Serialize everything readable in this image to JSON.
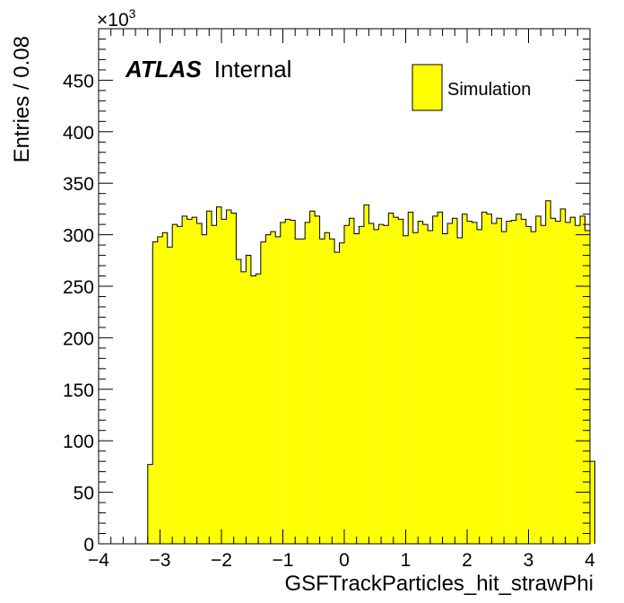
{
  "chart_data": {
    "type": "bar",
    "xlabel": "GSFTrackParticles_hit_strawPhi",
    "ylabel": "Entries / 0.08",
    "y_multiplier_label": "×10",
    "y_multiplier_exponent": "3",
    "xlim": [
      -4,
      4
    ],
    "ylim": [
      0,
      500
    ],
    "x_ticks": [
      -4,
      -3,
      -2,
      -1,
      0,
      1,
      2,
      3,
      4
    ],
    "x_tick_labels": [
      "−4",
      "−3",
      "−2",
      "−1",
      "0",
      "1",
      "2",
      "3",
      "4"
    ],
    "y_ticks": [
      0,
      50,
      100,
      150,
      200,
      250,
      300,
      350,
      400,
      450
    ],
    "y_tick_labels": [
      "0",
      "50",
      "100",
      "150",
      "200",
      "250",
      "300",
      "350",
      "400",
      "450"
    ],
    "bin_width": 0.08,
    "first_bin_low_edge": -3.2,
    "values": [
      77,
      293,
      298,
      302,
      288,
      310,
      308,
      318,
      315,
      317,
      311,
      300,
      323,
      309,
      327,
      315,
      324,
      321,
      276,
      264,
      280,
      260,
      262,
      293,
      300,
      303,
      298,
      312,
      315,
      314,
      296,
      296,
      312,
      323,
      318,
      296,
      302,
      296,
      283,
      292,
      309,
      316,
      301,
      308,
      329,
      311,
      305,
      310,
      309,
      321,
      317,
      315,
      299,
      322,
      302,
      313,
      310,
      304,
      318,
      322,
      301,
      311,
      316,
      297,
      320,
      313,
      312,
      305,
      322,
      320,
      311,
      316,
      303,
      313,
      314,
      320,
      315,
      308,
      303,
      318,
      309,
      333,
      316,
      313,
      325,
      312,
      317,
      309,
      318,
      304,
      80
    ],
    "series_name": "Simulation",
    "fill_color": "#ffff00",
    "line_color": "#000000",
    "grid": false,
    "legend_position": "top-right",
    "annotation_bold": "ATLAS",
    "annotation_normal": "Internal"
  }
}
